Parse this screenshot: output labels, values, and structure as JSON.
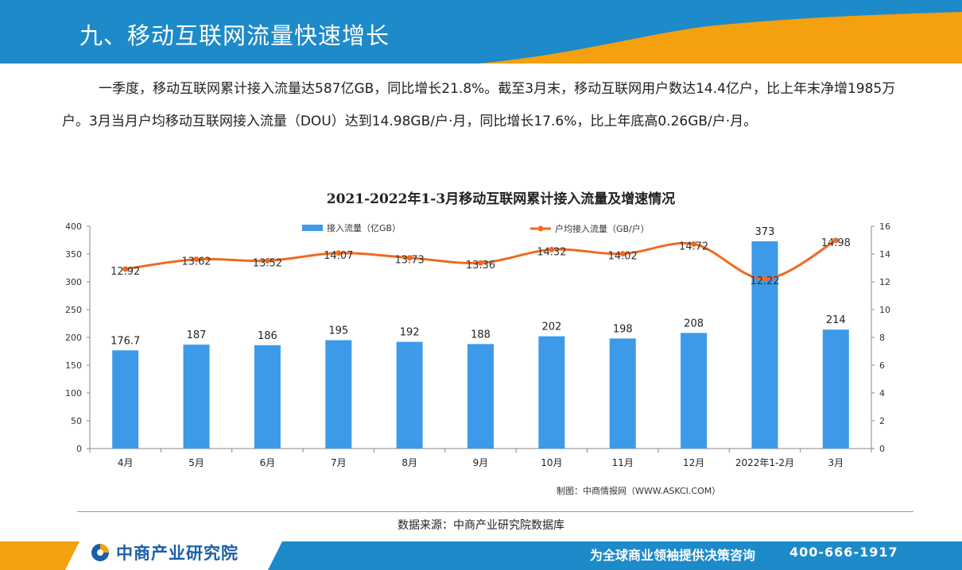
{
  "header": {
    "title": "九、移动互联网流量快速增长"
  },
  "paragraph": "一季度，移动互联网累计接入流量达587亿GB，同比增长21.8%。截至3月末，移动互联网用户数达14.4亿户，比上年末净增1985万户。3月当月户均移动互联网接入流量（DOU）达到14.98GB/户·月，同比增长17.6%，比上年底高0.26GB/户·月。",
  "chart_data": {
    "type": "bar",
    "title": "2021-2022年1-3月移动互联网累计接入流量及增速情况",
    "categories": [
      "4月",
      "5月",
      "6月",
      "7月",
      "8月",
      "9月",
      "10月",
      "11月",
      "12月",
      "2022年1-2月",
      "3月"
    ],
    "series": [
      {
        "name": "接入流量（亿GB）",
        "type": "bar",
        "axis": "left",
        "color": "#3d9ae8",
        "values": [
          176.7,
          187,
          186,
          195,
          192,
          188,
          202,
          198,
          208,
          373,
          214
        ],
        "labels": [
          "176.7",
          "187",
          "186",
          "195",
          "192",
          "188",
          "202",
          "198",
          "208",
          "373",
          "214"
        ]
      },
      {
        "name": "户均接入流量（GB/户）",
        "type": "line",
        "axis": "right",
        "color": "#f06a22",
        "values": [
          12.92,
          13.62,
          13.52,
          14.07,
          13.73,
          13.36,
          14.32,
          14.02,
          14.72,
          12.22,
          14.98
        ],
        "labels": [
          "12.92",
          "13.62",
          "13.52",
          "14.07",
          "13.73",
          "13.36",
          "14.32",
          "14.02",
          "14.72",
          "12.22",
          "14.98"
        ]
      }
    ],
    "y_left": {
      "min": 0,
      "max": 400,
      "ticks": [
        "0",
        "50",
        "100",
        "150",
        "200",
        "250",
        "300",
        "350",
        "400"
      ]
    },
    "y_right": {
      "min": 0,
      "max": 16,
      "ticks": [
        "0",
        "2",
        "4",
        "6",
        "8",
        "10",
        "12",
        "14",
        "16"
      ]
    },
    "legend_position": "top",
    "grid": false,
    "credit": "制图：中商情报网（WWW.ASKCI.COM）"
  },
  "footer": {
    "source": "数据来源：中商产业研究院数据库",
    "logo_text": "中商产业研究院",
    "slogan": "为全球商业领袖提供决策咨询",
    "phone": "400-666-1917"
  },
  "colors": {
    "header_blue": "#1d8ac9",
    "accent_orange": "#f5a00e",
    "bar": "#3d9ae8",
    "line": "#f06a22"
  }
}
